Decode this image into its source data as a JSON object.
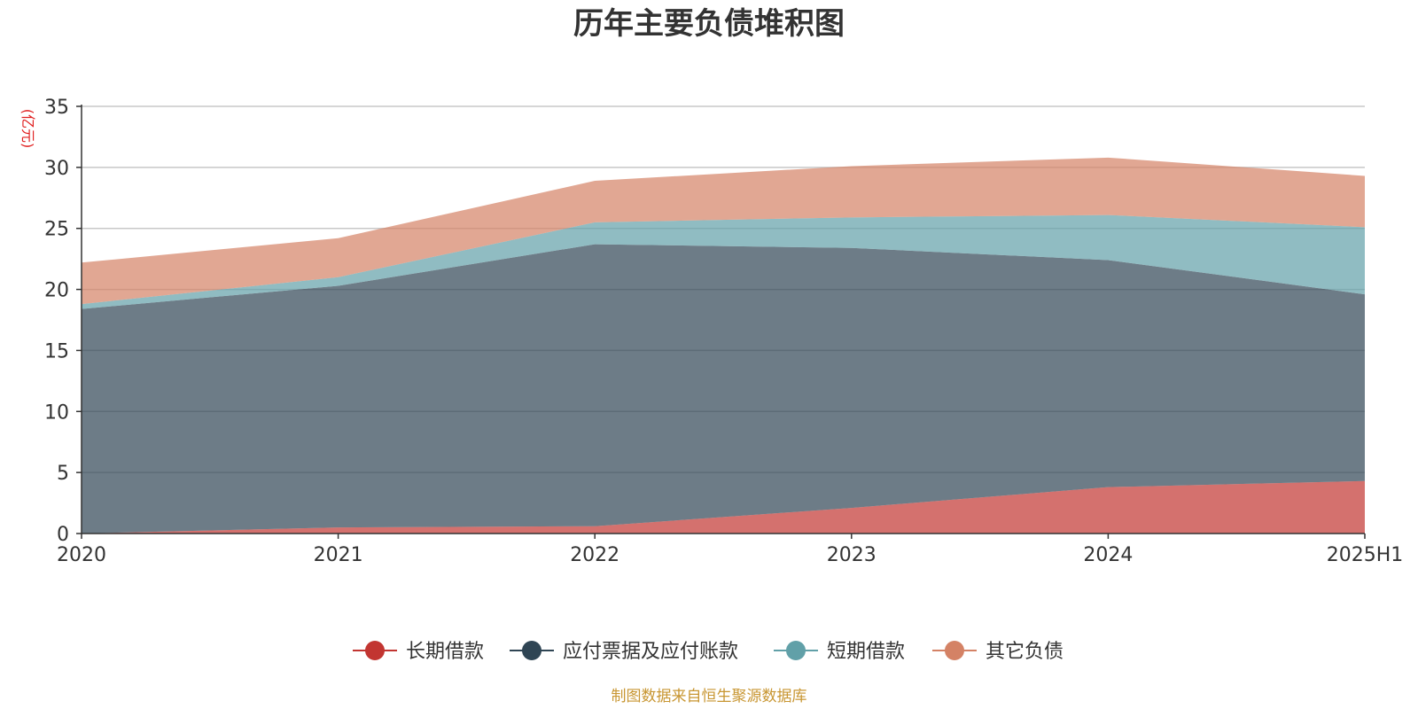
{
  "chart_data": {
    "type": "area",
    "stacked": true,
    "title": "历年主要负债堆积图",
    "ylabel": "(亿元)",
    "xlabel": "",
    "categories": [
      "2020",
      "2021",
      "2022",
      "2023",
      "2024",
      "2025H1"
    ],
    "ylim": [
      0,
      35
    ],
    "yticks": [
      "0",
      "5",
      "10",
      "15",
      "20",
      "25",
      "30",
      "35"
    ],
    "grid": true,
    "legend_position": "bottom-center",
    "series": [
      {
        "name": "长期借款",
        "color": "#c23531",
        "values": [
          0.0,
          0.5,
          0.6,
          2.1,
          3.8,
          4.3
        ]
      },
      {
        "name": "应付票据及应付账款",
        "color": "#2f4554",
        "values": [
          18.4,
          19.8,
          23.1,
          21.3,
          18.6,
          15.3
        ]
      },
      {
        "name": "短期借款",
        "color": "#61a0a8",
        "values": [
          0.4,
          0.7,
          1.8,
          2.5,
          3.7,
          5.5
        ]
      },
      {
        "name": "其它负债",
        "color": "#d48265",
        "values": [
          3.4,
          3.2,
          3.4,
          4.2,
          4.7,
          4.2
        ]
      }
    ]
  },
  "footer": {
    "source": "制图数据来自恒生聚源数据库"
  }
}
